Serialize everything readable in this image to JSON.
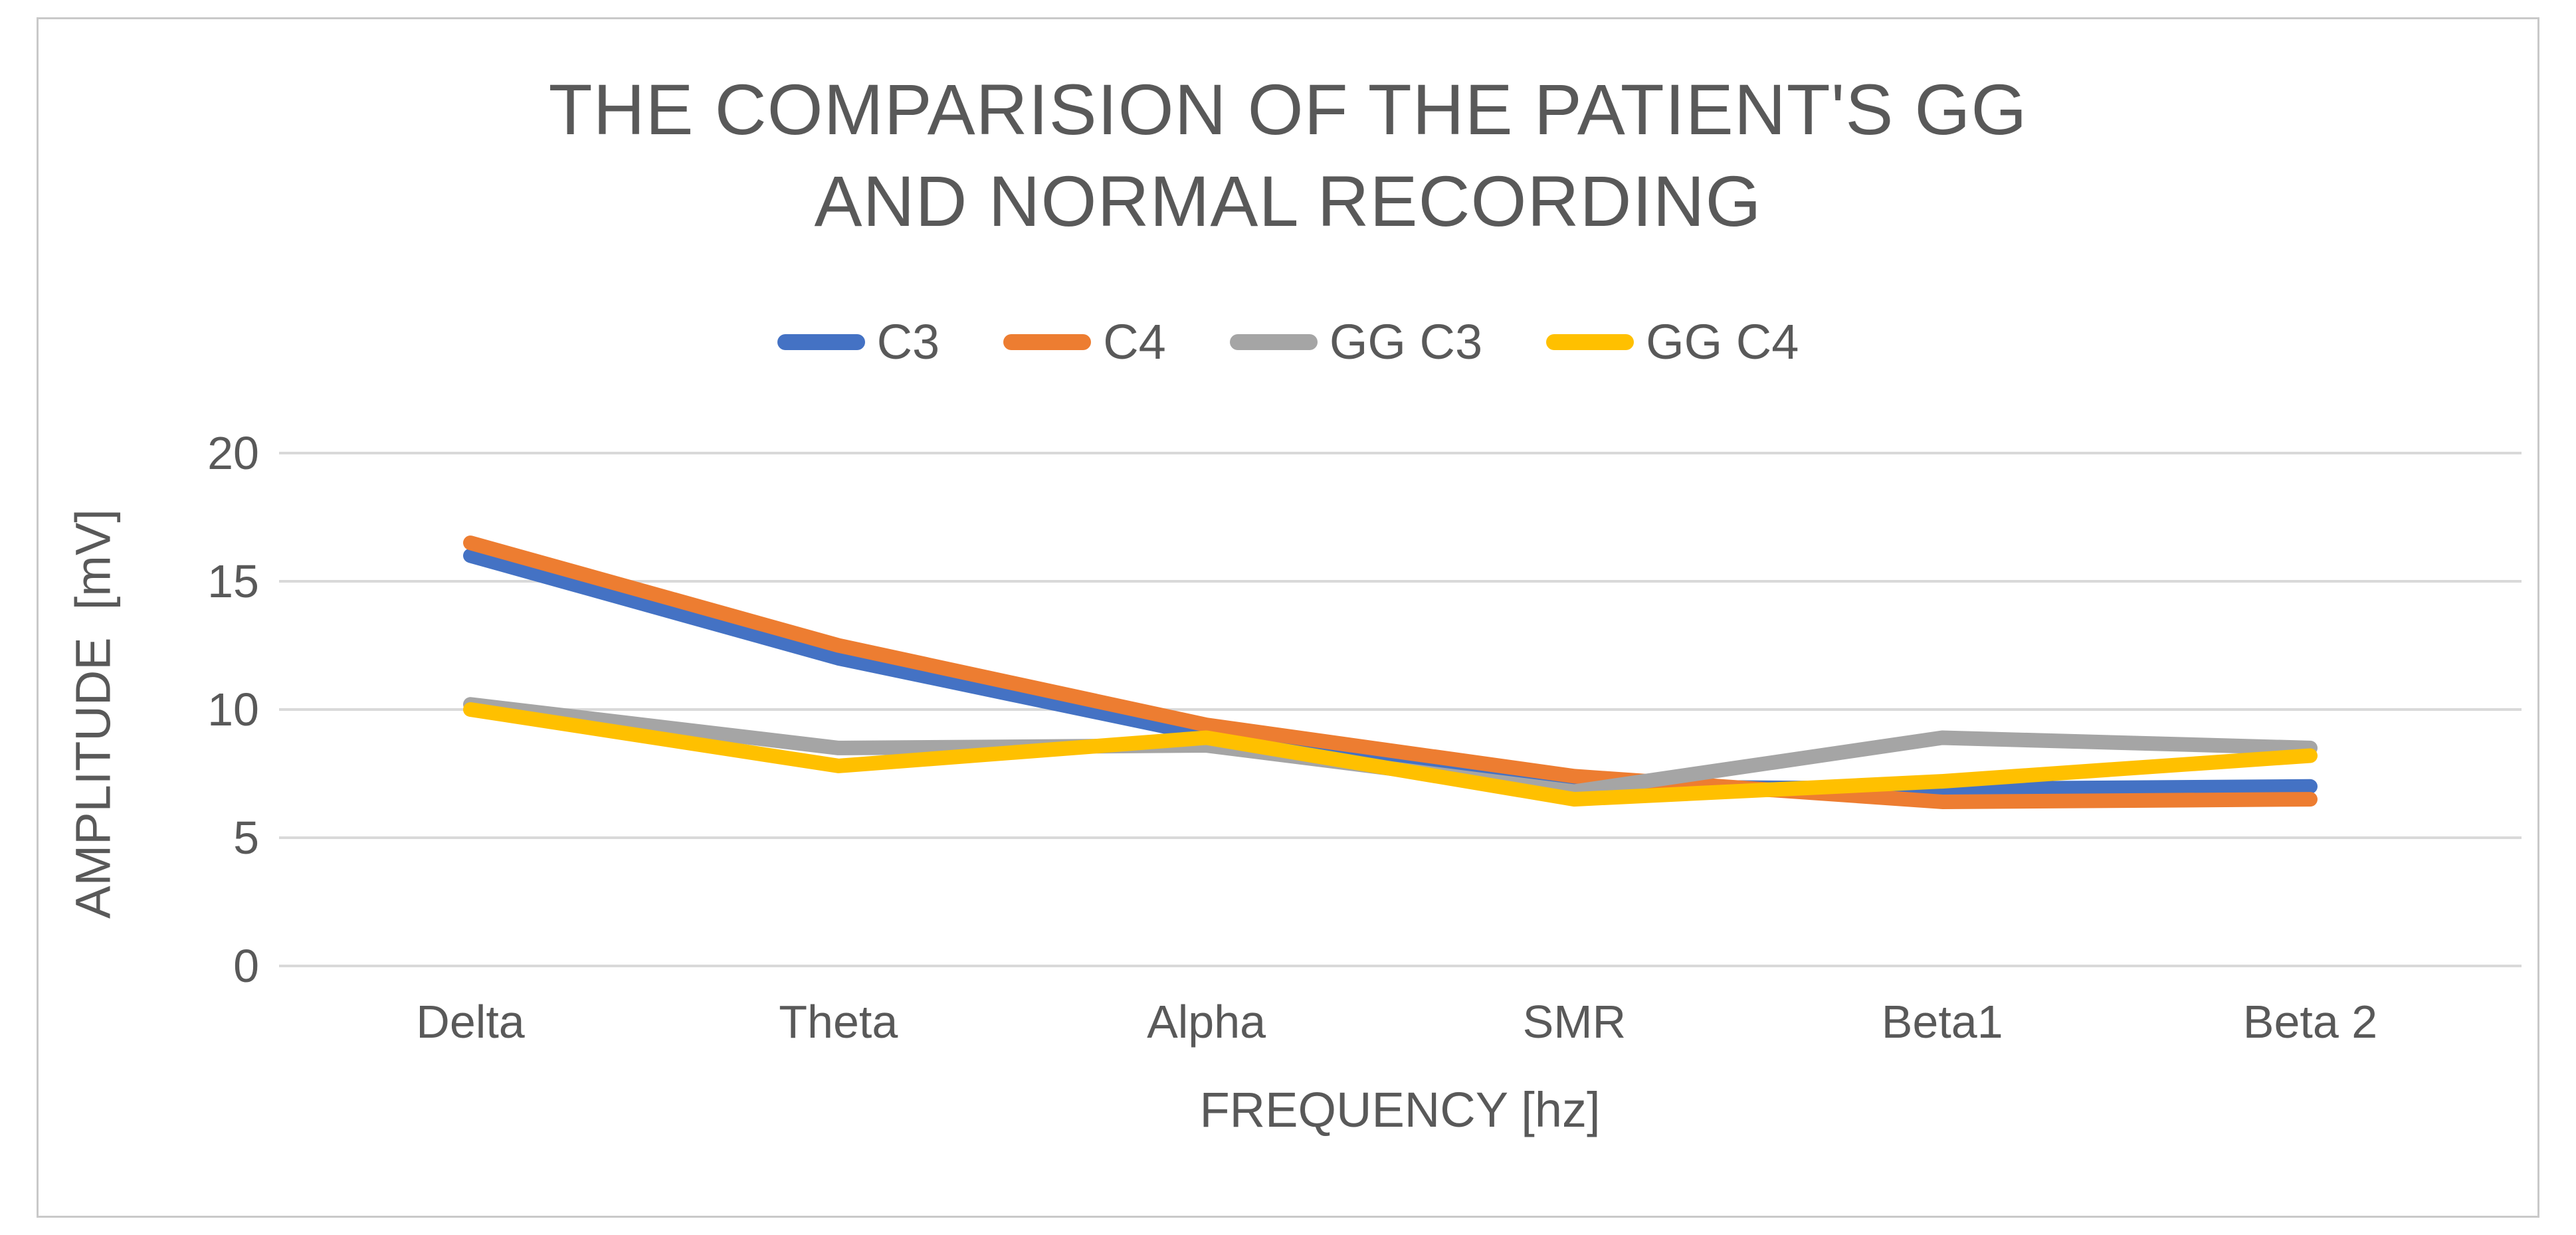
{
  "chart_data": {
    "type": "line",
    "title": "THE COMPARISION OF THE PATIENT'S GG AND NORMAL RECORDING",
    "title_lines": [
      "THE COMPARISION OF THE PATIENT'S GG",
      "AND NORMAL RECORDING"
    ],
    "categories": [
      "Delta",
      "Theta",
      "Alpha",
      "SMR",
      "Beta1",
      "Beta 2"
    ],
    "series": [
      {
        "name": "C3",
        "color": "#4472C4",
        "values": [
          16.0,
          12.0,
          9.0,
          7.0,
          6.9,
          7.0
        ]
      },
      {
        "name": "C4",
        "color": "#ED7D31",
        "values": [
          16.5,
          12.5,
          9.4,
          7.4,
          6.4,
          6.5
        ]
      },
      {
        "name": "GG C3",
        "color": "#A5A5A5",
        "values": [
          10.2,
          8.5,
          8.6,
          6.8,
          8.9,
          8.5
        ]
      },
      {
        "name": "GG C4",
        "color": "#FFC000",
        "values": [
          10.0,
          7.8,
          8.9,
          6.5,
          7.2,
          8.2
        ]
      }
    ],
    "xlabel": "FREQUENCY [hz]",
    "ylabel": "AMPLITUDE  [mV]",
    "yticks": [
      0,
      5,
      10,
      15,
      20
    ],
    "ylim": [
      0,
      20
    ],
    "legend_position": "top",
    "legend_labels": [
      "C3",
      "C4",
      "GG C3",
      "GG C4"
    ],
    "grid": "horizontal",
    "gridline_color": "#D9D9D9",
    "text_color": "#595959",
    "border_color": "#C9C9C9",
    "background": "#FFFFFF"
  }
}
